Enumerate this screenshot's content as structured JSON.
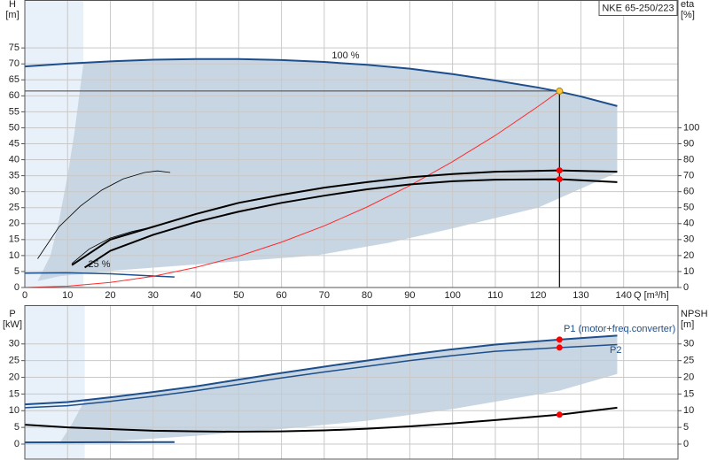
{
  "chart_data": [
    {
      "type": "line",
      "title": "NKE 65-250/223",
      "y_label": "H",
      "y_unit": "[m]",
      "y2_label": "eta",
      "y2_unit": "[%]",
      "x_label": "Q [m³/h]",
      "xlim": [
        0,
        152.7
      ],
      "xticks": [
        0,
        10,
        20,
        30,
        40,
        50,
        60,
        70,
        80,
        90,
        100,
        110,
        120,
        130,
        140
      ],
      "ylim": [
        0,
        90
      ],
      "yticks": [
        0,
        5,
        10,
        15,
        20,
        25,
        30,
        35,
        40,
        45,
        50,
        55,
        60,
        65,
        70,
        75
      ],
      "y2lim": [
        0,
        180
      ],
      "y2ticks": [
        0,
        10,
        20,
        30,
        40,
        50,
        60,
        70,
        80,
        90,
        100
      ],
      "grid": true,
      "areas": [
        {
          "color": "#e8f0f9",
          "x": [
            0,
            0,
            13.7,
            13.7
          ],
          "values": [
            0,
            90,
            90,
            0
          ]
        },
        {
          "color": "#c8d6e3",
          "x": [
            3,
            6,
            8,
            10,
            11.6,
            13.7,
            20,
            30,
            40,
            50,
            60,
            70,
            80,
            90,
            100,
            110,
            120,
            125,
            130,
            138.5,
            138.5,
            120,
            100,
            85,
            68,
            40,
            20,
            8,
            3
          ],
          "values": [
            2,
            10,
            21,
            35,
            48.5,
            70.2,
            70.8,
            71.3,
            71.5,
            71.5,
            71.2,
            70.6,
            69.7,
            68.5,
            66.8,
            64.8,
            62.6,
            61.3,
            59.8,
            56.8,
            36,
            25,
            18.5,
            14,
            10,
            7.2,
            5.2,
            3.5,
            2
          ]
        }
      ],
      "series": [
        {
          "color": "#1d4f8c",
          "width": 2,
          "x": [
            0,
            10,
            20,
            30,
            40,
            50,
            60,
            70,
            80,
            90,
            100,
            110,
            120,
            125,
            130,
            138.5
          ],
          "values": [
            69.2,
            70.1,
            70.8,
            71.3,
            71.5,
            71.5,
            71.2,
            70.6,
            69.7,
            68.5,
            66.8,
            64.8,
            62.6,
            61.3,
            59.8,
            56.8
          ]
        },
        {
          "color": "#1d4f8c",
          "width": 1.5,
          "x": [
            0,
            10,
            20,
            30,
            35
          ],
          "values": [
            4.5,
            4.6,
            4.3,
            3.6,
            3.3
          ]
        },
        {
          "color": "#ff2a2a",
          "width": 1,
          "x": [
            0,
            10,
            20,
            30,
            40,
            50,
            60,
            70,
            80,
            90,
            100,
            110,
            120,
            125
          ],
          "values": [
            0,
            0.4,
            1.6,
            3.5,
            6.3,
            9.8,
            14.2,
            19.3,
            25.2,
            31.9,
            39.4,
            47.6,
            56.7,
            61.5
          ]
        },
        {
          "color": "#000000",
          "width": 2,
          "axis": "y2",
          "x": [
            11,
            20,
            30,
            40,
            50,
            60,
            70,
            80,
            90,
            100,
            110,
            125,
            138.5
          ],
          "values": [
            14,
            30,
            38,
            46,
            53,
            58,
            62.5,
            66,
            69,
            71,
            72.5,
            73.3,
            72.5
          ]
        },
        {
          "color": "#000000",
          "width": 2,
          "axis": "y2",
          "x": [
            14,
            20,
            30,
            40,
            50,
            60,
            70,
            80,
            90,
            100,
            110,
            125,
            138.5
          ],
          "values": [
            12.5,
            23,
            33,
            41,
            47.5,
            53,
            57.5,
            61.5,
            64.5,
            66.5,
            67.5,
            67.8,
            66
          ]
        },
        {
          "color": "#000000",
          "width": 0.8,
          "axis": "y2",
          "x": [
            3,
            8,
            13,
            18,
            23,
            28,
            31,
            34
          ],
          "values": [
            18,
            38,
            51,
            61,
            68,
            72,
            73,
            72
          ]
        },
        {
          "color": "#000000",
          "width": 0.8,
          "axis": "y2",
          "x": [
            11,
            15,
            20,
            25,
            30
          ],
          "values": [
            15,
            24,
            31,
            35,
            38
          ]
        }
      ],
      "points": [
        {
          "x": 125,
          "y": 61.5,
          "color": "#f7c843"
        },
        {
          "x": 125,
          "y": 73.3,
          "axis": "y2",
          "color": "#ff0000"
        },
        {
          "x": 125,
          "y": 67.8,
          "axis": "y2",
          "color": "#ff0000"
        }
      ],
      "annotations": [
        "100 %",
        "25 %"
      ]
    },
    {
      "type": "line",
      "y_label": "P",
      "y_unit": "[kW]",
      "y2_label": "NPSH",
      "y2_unit": "[m]",
      "xlim": [
        0,
        152.7
      ],
      "xticks": [
        0,
        10,
        20,
        30,
        40,
        50,
        60,
        70,
        80,
        90,
        100,
        110,
        120,
        130,
        140
      ],
      "ylim": [
        -4.5,
        41.6
      ],
      "yticks": [
        0,
        5,
        10,
        15,
        20,
        25,
        30
      ],
      "y2lim": [
        -4.5,
        41.6
      ],
      "y2ticks": [
        0,
        5,
        10,
        15,
        20,
        25,
        30
      ],
      "grid": true,
      "areas": [
        {
          "color": "#e8f0f9",
          "x": [
            0,
            0,
            14,
            14
          ],
          "values": [
            -4.5,
            41.6,
            41.6,
            -4.5
          ]
        },
        {
          "color": "#c8d6e3",
          "x": [
            8,
            11,
            14,
            20,
            30,
            40,
            50,
            60,
            70,
            80,
            90,
            100,
            110,
            125,
            138.5,
            138.5,
            125,
            100,
            80,
            60,
            40,
            20,
            8
          ],
          "values": [
            0,
            6,
            13.1,
            14,
            15.6,
            17.3,
            19.3,
            21.3,
            23.2,
            25,
            26.8,
            28.4,
            29.8,
            31.3,
            32.5,
            21,
            16,
            10.5,
            7,
            4.5,
            2.5,
            0.8,
            0
          ]
        }
      ],
      "series": [
        {
          "color": "#1d4f8c",
          "width": 2,
          "x": [
            0,
            10,
            20,
            30,
            40,
            50,
            60,
            70,
            80,
            90,
            100,
            110,
            125,
            138.5
          ],
          "values": [
            11.9,
            12.6,
            14,
            15.6,
            17.3,
            19.3,
            21.3,
            23.2,
            25,
            26.8,
            28.4,
            29.8,
            31.3,
            32.5
          ]
        },
        {
          "color": "#1d4f8c",
          "width": 1.5,
          "x": [
            0,
            10,
            20,
            30,
            40,
            50,
            60,
            70,
            80,
            90,
            100,
            110,
            125,
            138.5
          ],
          "values": [
            10.9,
            11.5,
            12.8,
            14.3,
            16,
            17.9,
            19.8,
            21.6,
            23.3,
            25,
            26.5,
            27.8,
            28.9,
            29.8
          ]
        },
        {
          "color": "#1d4f8c",
          "width": 2,
          "x": [
            0,
            35
          ],
          "values": [
            0.5,
            0.6
          ]
        },
        {
          "color": "#000000",
          "width": 2,
          "axis": "y2",
          "x": [
            0,
            10,
            20,
            30,
            40,
            50,
            60,
            70,
            80,
            90,
            100,
            110,
            125,
            138.5
          ],
          "values": [
            5.8,
            5,
            4.5,
            4,
            3.8,
            3.7,
            3.8,
            4.1,
            4.6,
            5.3,
            6.2,
            7.2,
            8.8,
            10.9
          ]
        }
      ],
      "points": [
        {
          "x": 125,
          "y": 31.3,
          "color": "#ff0000"
        },
        {
          "x": 125,
          "y": 28.9,
          "color": "#ff0000"
        },
        {
          "x": 125,
          "y": 8.8,
          "axis": "y2",
          "color": "#ff0000"
        }
      ],
      "annotations": [
        "P1 (motor+freq.converter)",
        "P2"
      ]
    }
  ]
}
